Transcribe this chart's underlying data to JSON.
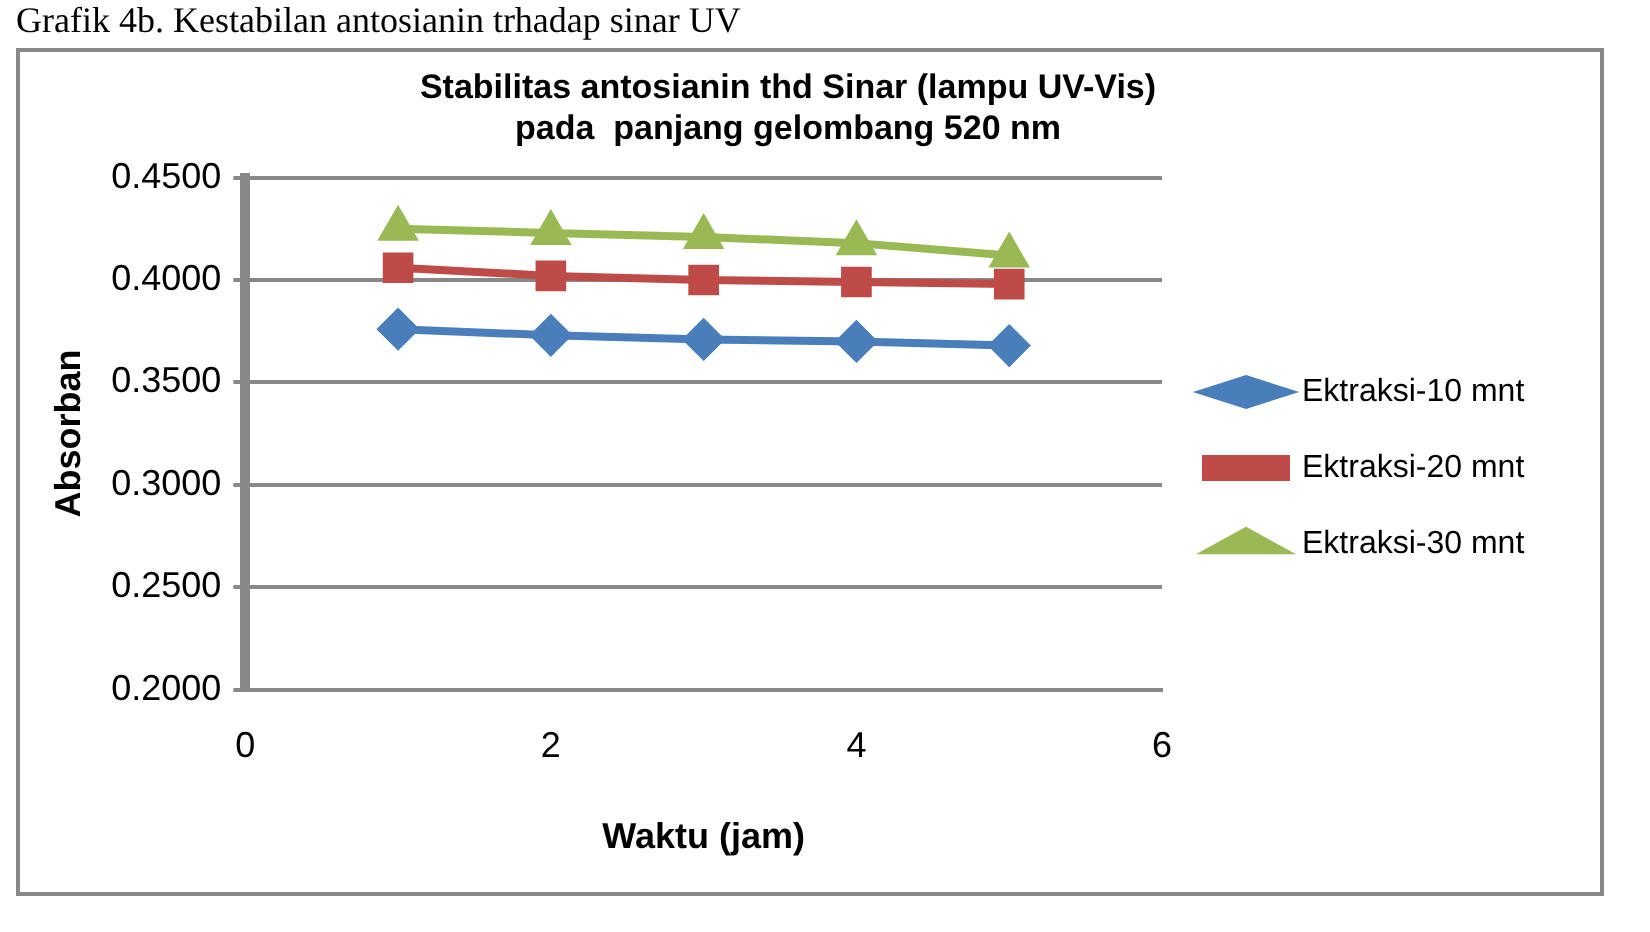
{
  "chart_data": {
    "type": "line",
    "title": "Stabilitas antosianin thd Sinar (lampu UV-Vis)\npada  panjang gelombang 520 nm",
    "xlabel": "Waktu (jam)",
    "ylabel": "Absorban",
    "annotations": [
      "Grafik 4b. Kestabilan antosianin trhadap sinar UV"
    ],
    "x": [
      1,
      2,
      3,
      4,
      5
    ],
    "series": [
      {
        "name": "Ektraksi-10 mnt",
        "color": "#4a7ebb",
        "marker": "diamond",
        "values": [
          0.376,
          0.373,
          0.371,
          0.37,
          0.368
        ]
      },
      {
        "name": "Ektraksi-20 mnt",
        "color": "#be4b48",
        "marker": "square",
        "values": [
          0.406,
          0.402,
          0.4,
          0.399,
          0.398
        ]
      },
      {
        "name": "Ektraksi-30 mnt",
        "color": "#98b954",
        "marker": "triangle",
        "values": [
          0.425,
          0.423,
          0.421,
          0.418,
          0.412
        ]
      }
    ],
    "xlim": [
      0,
      6
    ],
    "xticks": [
      0,
      2,
      4,
      6
    ],
    "ylim": [
      0.2,
      0.45
    ],
    "yticks": [
      {
        "value": 0.2,
        "label": "0.2000"
      },
      {
        "value": 0.25,
        "label": "0.2500"
      },
      {
        "value": 0.3,
        "label": "0.3000"
      },
      {
        "value": 0.35,
        "label": "0.3500"
      },
      {
        "value": 0.4,
        "label": "0.4000"
      },
      {
        "value": 0.45,
        "label": "0.4500"
      }
    ],
    "grid": "y",
    "legend": "right",
    "line_style": "solid"
  }
}
